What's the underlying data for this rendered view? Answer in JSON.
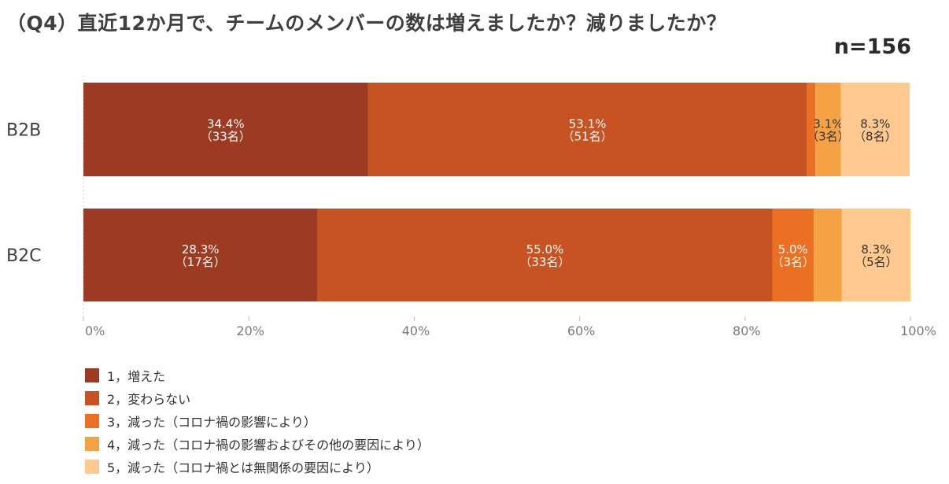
{
  "title": "（Q4）直近12か月で、チームのメンバーの数は増えましたか？減りましたか？",
  "sample": "n=156",
  "chart_data": {
    "type": "bar",
    "orientation": "horizontal",
    "stacked": "percent",
    "categories": [
      "B2B",
      "B2C"
    ],
    "series": [
      {
        "name": "1，増えた",
        "color": "#9c3b22",
        "values": [
          34.4,
          28.3
        ],
        "labels": [
          [
            "34.4%",
            "（33名）"
          ],
          [
            "28.3%",
            "（17名）"
          ]
        ]
      },
      {
        "name": "2，変わらない",
        "color": "#c75322",
        "values": [
          53.1,
          55.0
        ],
        "labels": [
          [
            "53.1%",
            "（51名）"
          ],
          [
            "55.0%",
            "（33名）"
          ]
        ]
      },
      {
        "name": "3，減った（コロナ禍の影響により）",
        "color": "#ec7023",
        "values": [
          1.0,
          5.0
        ],
        "labels": [
          [],
          [
            "5.0%",
            "（3名）"
          ]
        ]
      },
      {
        "name": "4，減った（コロナ禍の影響およびその他の要因により）",
        "color": "#f4a244",
        "values": [
          3.1,
          3.4
        ],
        "labels": [
          [
            "3.1%",
            "（3名）"
          ],
          []
        ]
      },
      {
        "name": "5，減った（コロナ禍とは無関係の要因により）",
        "color": "#fdc98e",
        "values": [
          8.3,
          8.3
        ],
        "labels": [
          [
            "8.3%",
            "（8名）"
          ],
          [
            "8.3%",
            "（5名）"
          ]
        ]
      }
    ],
    "xlim": [
      0,
      100
    ],
    "x_ticks": [
      "0%",
      "20%",
      "40%",
      "60%",
      "80%",
      "100%"
    ],
    "legend_position": "bottom-left"
  }
}
